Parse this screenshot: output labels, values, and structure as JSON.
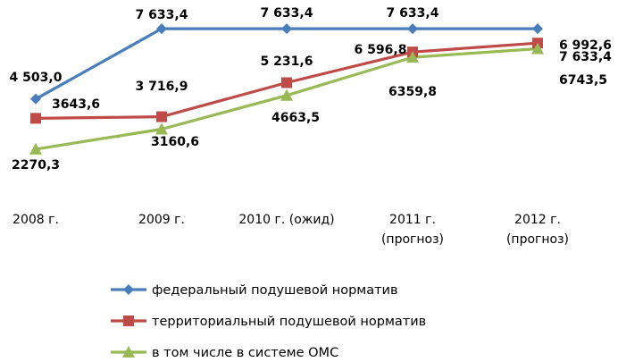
{
  "chart_data": {
    "type": "line",
    "title": "",
    "xlabel": "",
    "ylabel": "",
    "ylim": [
      0,
      8100
    ],
    "grid": false,
    "legend_position": "bottom",
    "categories": [
      [
        "2008 г."
      ],
      [
        "2009 г."
      ],
      [
        "2010 г. (ожид)"
      ],
      [
        "2011  г.",
        "(прогноз)"
      ],
      [
        "2012  г.",
        "(прогноз)"
      ]
    ],
    "series": [
      {
        "name": "федеральный подушевой норматив",
        "color": "#4a7ebb",
        "marker": "diamond",
        "values": [
          4503.0,
          7633.4,
          7633.4,
          7633.4,
          7633.4
        ],
        "labels": [
          "4 503,0",
          "7 633,4",
          "7 633,4",
          "7 633,4",
          "7 633,4"
        ]
      },
      {
        "name": "территориальный подушевой норматив",
        "color": "#be4b48",
        "marker": "square",
        "values": [
          3643.6,
          3716.9,
          5231.6,
          6596.8,
          6992.6
        ],
        "labels": [
          "3643,6",
          "3 716,9",
          "5 231,6",
          "6 596,8",
          "6 992,6"
        ]
      },
      {
        "name": "в том числе в системе ОМС",
        "color": "#98b954",
        "marker": "triangle",
        "values": [
          2270.3,
          3160.6,
          4663.5,
          6359.8,
          6743.5
        ],
        "labels": [
          "2270,3",
          "3160,6",
          "4663,5",
          "6359,8",
          "6743,5"
        ]
      }
    ]
  }
}
